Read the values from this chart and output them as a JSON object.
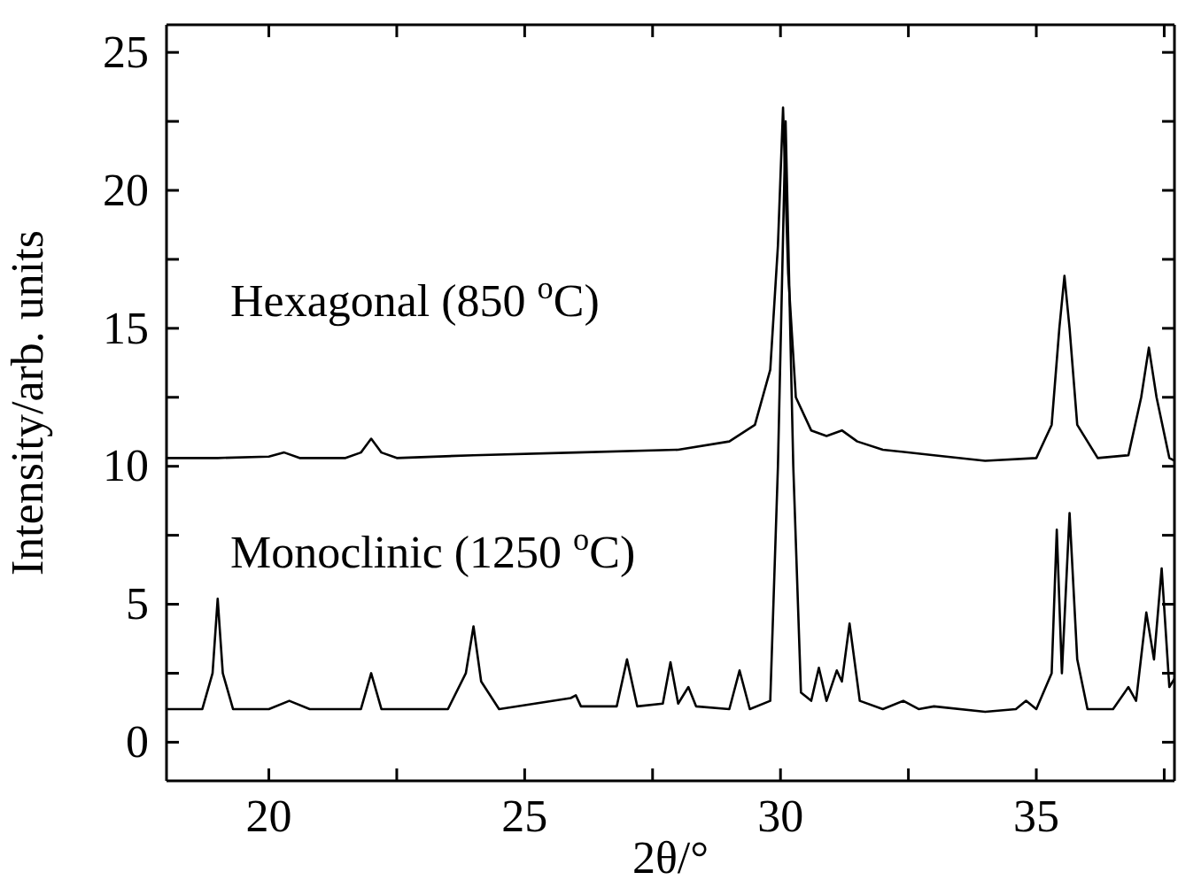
{
  "chart_data": {
    "type": "line",
    "xlabel": "2θ/°",
    "ylabel": "Intensity/arb. units",
    "xlim": [
      18,
      37.7
    ],
    "ylim": [
      -1.4,
      26
    ],
    "xticks": [
      20,
      {
        "value": 22.5,
        "label": null
      },
      25,
      {
        "value": 27.5,
        "label": null
      },
      30,
      {
        "value": 32.5,
        "label": null
      },
      35,
      {
        "value": 37.5,
        "label": null
      }
    ],
    "yticks": [
      0,
      {
        "value": 2.5,
        "label": null
      },
      5,
      {
        "value": 7.5,
        "label": null
      },
      10,
      {
        "value": 12.5,
        "label": null
      },
      15,
      {
        "value": 17.5,
        "label": null
      },
      20,
      {
        "value": 22.5,
        "label": null
      },
      25
    ],
    "grid": false,
    "marker": "none",
    "line_style": "solid",
    "series": [
      {
        "name": "Hexagonal (850 $^{o}$C)",
        "color": "#000000",
        "x": [
          18,
          19,
          20,
          20.3,
          20.6,
          21.5,
          21.8,
          22,
          22.2,
          22.5,
          24,
          26,
          28,
          29,
          29.5,
          29.8,
          29.95,
          30.05,
          30.15,
          30.3,
          30.6,
          30.9,
          31.2,
          31.5,
          32,
          33,
          34,
          35,
          35.3,
          35.45,
          35.55,
          35.65,
          35.8,
          36.2,
          36.8,
          37.05,
          37.2,
          37.35,
          37.6,
          37.7
        ],
        "values": [
          10.3,
          10.3,
          10.35,
          10.5,
          10.3,
          10.3,
          10.5,
          11,
          10.5,
          10.3,
          10.4,
          10.5,
          10.6,
          10.9,
          11.5,
          13.5,
          18,
          23,
          17,
          12.5,
          11.3,
          11.1,
          11.3,
          10.9,
          10.6,
          10.4,
          10.2,
          10.3,
          11.5,
          15,
          16.9,
          15,
          11.5,
          10.3,
          10.4,
          12.5,
          14.3,
          12.5,
          10.3,
          10.2
        ]
      },
      {
        "name": "Monoclinic (1250 $^{o}$C)",
        "color": "#000000",
        "x": [
          18,
          18.7,
          18.9,
          19,
          19.1,
          19.3,
          20,
          20.4,
          20.8,
          21.8,
          22,
          22.2,
          23.5,
          23.85,
          24,
          24.15,
          24.5,
          25.9,
          26,
          26.1,
          26.8,
          27,
          27.2,
          27.7,
          27.85,
          28,
          28.2,
          28.35,
          29,
          29.2,
          29.4,
          29.8,
          29.95,
          30.1,
          30.25,
          30.4,
          30.6,
          30.75,
          30.9,
          31.1,
          31.2,
          31.35,
          31.55,
          32,
          32.4,
          32.7,
          33,
          34,
          34.6,
          34.8,
          35,
          35.3,
          35.4,
          35.5,
          35.65,
          35.8,
          36,
          36.5,
          36.8,
          36.95,
          37.15,
          37.3,
          37.45,
          37.6,
          37.7
        ],
        "values": [
          1.2,
          1.2,
          2.5,
          5.2,
          2.5,
          1.2,
          1.2,
          1.5,
          1.2,
          1.2,
          2.5,
          1.2,
          1.2,
          2.5,
          4.2,
          2.2,
          1.2,
          1.6,
          1.7,
          1.3,
          1.3,
          3,
          1.3,
          1.4,
          2.9,
          1.4,
          2,
          1.3,
          1.2,
          2.6,
          1.2,
          1.5,
          10,
          22.5,
          10,
          1.8,
          1.5,
          2.7,
          1.5,
          2.6,
          2.2,
          4.3,
          1.5,
          1.2,
          1.5,
          1.2,
          1.3,
          1.1,
          1.2,
          1.5,
          1.2,
          2.5,
          7.7,
          2.5,
          8.3,
          3,
          1.2,
          1.2,
          2,
          1.5,
          4.7,
          3,
          6.3,
          2,
          2.3
        ]
      }
    ]
  }
}
